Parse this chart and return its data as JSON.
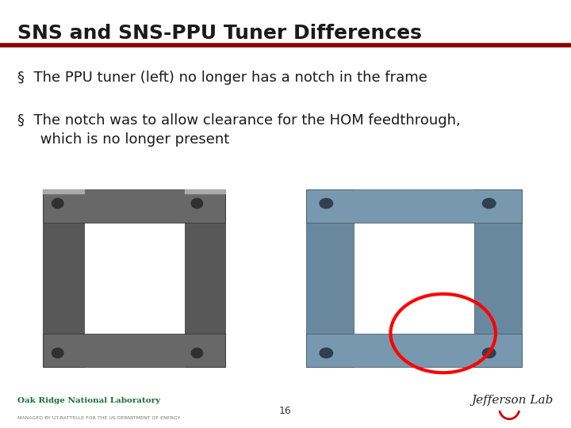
{
  "title": "SNS and SNS-PPU Tuner Differences",
  "title_fontsize": 18,
  "title_color": "#1a1a1a",
  "header_line_color": "#8b0000",
  "bullet_points": [
    "§  The PPU tuner (left) no longer has a notch in the frame",
    "§  The notch was to allow clearance for the HOM feedthrough,\n     which is no longer present"
  ],
  "bullet_color": "#1a1a1a",
  "bullet_fontsize": 13,
  "page_number": "16",
  "footer_left_main": "Oak Ridge National Laboratory",
  "footer_left_sub": "MANAGED BY UT-BATTELLE FOR THE US DEPARTMENT OF ENERGY",
  "footer_left_color": "#1a6b3a",
  "footer_right": "Jefferson Lab",
  "bg_color": "#ffffff"
}
